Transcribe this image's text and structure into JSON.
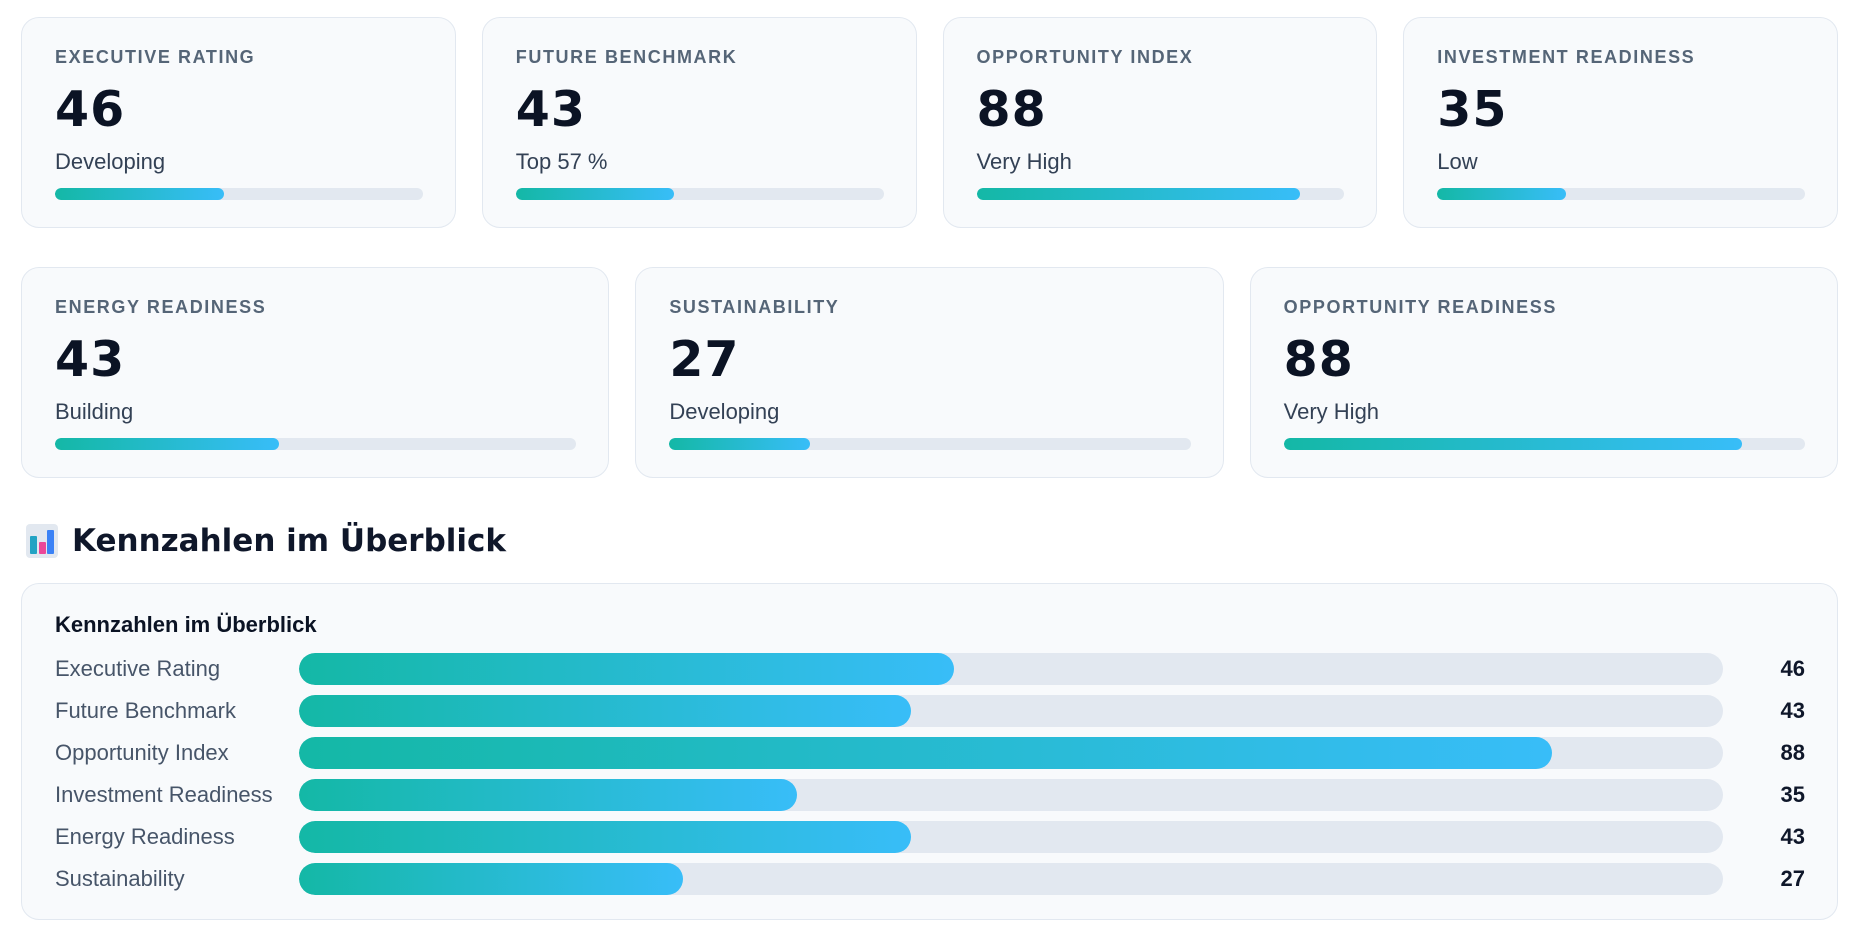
{
  "cards_top": [
    {
      "label": "EXECUTIVE RATING",
      "value": "46",
      "status": "Developing",
      "progress": 46
    },
    {
      "label": "FUTURE BENCHMARK",
      "value": "43",
      "status": "Top 57 %",
      "progress": 43
    },
    {
      "label": "OPPORTUNITY INDEX",
      "value": "88",
      "status": "Very High",
      "progress": 88
    },
    {
      "label": "INVESTMENT READINESS",
      "value": "35",
      "status": "Low",
      "progress": 35
    }
  ],
  "cards_bottom": [
    {
      "label": "ENERGY READINESS",
      "value": "43",
      "status": "Building",
      "progress": 43
    },
    {
      "label": "SUSTAINABILITY",
      "value": "27",
      "status": "Developing",
      "progress": 27
    },
    {
      "label": "OPPORTUNITY READINESS",
      "value": "88",
      "status": "Very High",
      "progress": 88
    }
  ],
  "section": {
    "icon": "bar-chart-icon",
    "title": "Kennzahlen im Überblick"
  },
  "overview": {
    "title": "Kennzahlen im Überblick",
    "max": 100,
    "rows": [
      {
        "label": "Executive Rating",
        "value": 46
      },
      {
        "label": "Future Benchmark",
        "value": 43
      },
      {
        "label": "Opportunity Index",
        "value": 88
      },
      {
        "label": "Investment Readiness",
        "value": 35
      },
      {
        "label": "Energy Readiness",
        "value": 43
      },
      {
        "label": "Sustainability",
        "value": 27
      }
    ]
  },
  "colors": {
    "gradient_start": "#14b8a6",
    "gradient_end": "#38bdf8",
    "track": "#e2e8f0"
  }
}
